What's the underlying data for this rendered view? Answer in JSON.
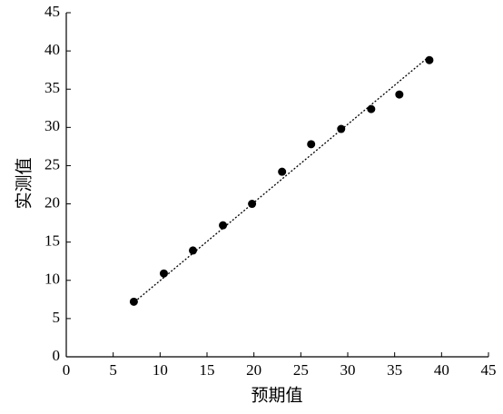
{
  "chart_data": {
    "type": "scatter",
    "x_label": "预期值",
    "y_label": "实测值",
    "x": [
      7.2,
      10.4,
      13.5,
      16.7,
      19.8,
      23.0,
      26.1,
      29.3,
      32.5,
      35.5,
      38.7
    ],
    "values": [
      7.2,
      10.9,
      13.9,
      17.2,
      20.0,
      24.2,
      27.8,
      29.8,
      32.4,
      34.3,
      38.8
    ],
    "color": "#000000",
    "fit_line": {
      "x": [
        7.0,
        38.7
      ],
      "y": [
        6.9,
        39.3
      ],
      "color": "#000000",
      "style": "dotted"
    },
    "xlim": [
      0,
      45
    ],
    "ylim": [
      0,
      45
    ],
    "xticks": [
      0,
      5,
      10,
      15,
      20,
      25,
      30,
      35,
      40,
      45
    ],
    "yticks": [
      0,
      5,
      10,
      15,
      20,
      25,
      30,
      35,
      40,
      45
    ],
    "grid": false
  }
}
